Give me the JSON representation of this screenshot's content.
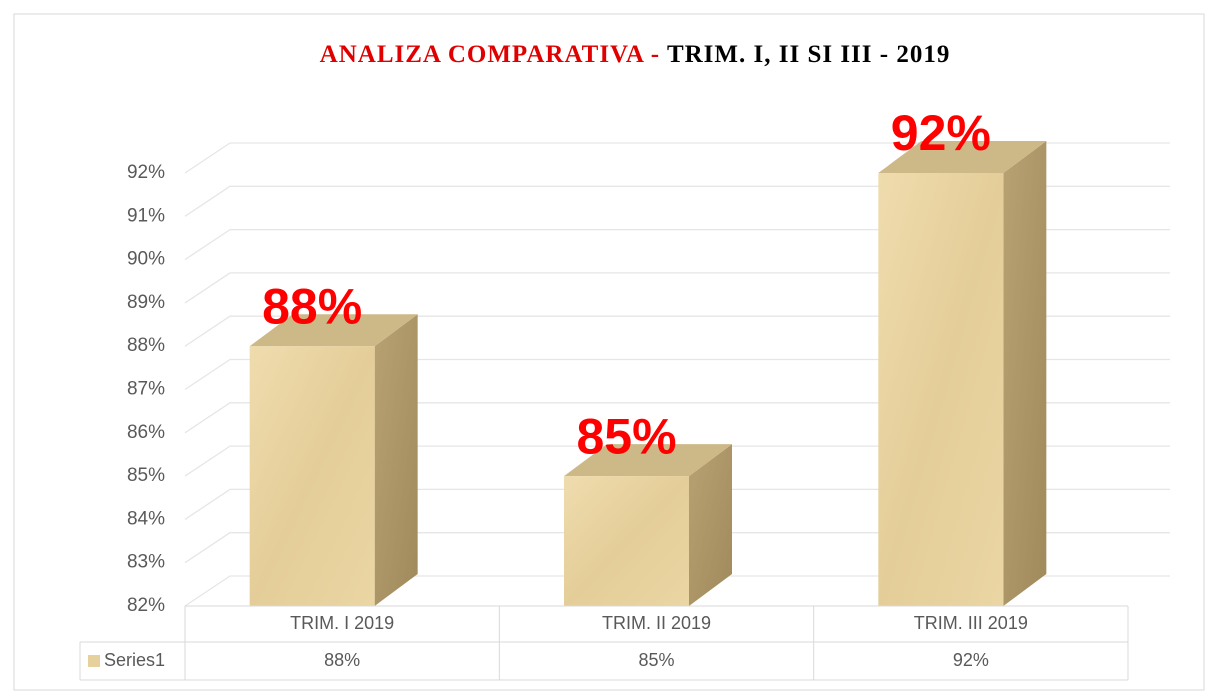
{
  "chart_data": {
    "type": "bar3d",
    "title": [
      "ANALIZA   COMPARATIVA -",
      "TRIM. I, II SI III - 2019"
    ],
    "title_colors": [
      "#e00000",
      "#000000"
    ],
    "categories": [
      "TRIM. I 2019",
      "TRIM. II 2019",
      "TRIM. III 2019"
    ],
    "series": [
      {
        "name": "Series1",
        "color": "#e6d09c",
        "values": [
          88,
          85,
          92
        ],
        "value_labels": [
          "88%",
          "85%",
          "92%"
        ]
      }
    ],
    "label_color": "#ff0000",
    "ylim": [
      82,
      92
    ],
    "yticks": [
      {
        "value": 82,
        "label": "82%"
      },
      {
        "value": 83,
        "label": "83%"
      },
      {
        "value": 84,
        "label": "84%"
      },
      {
        "value": 85,
        "label": "85%"
      },
      {
        "value": 86,
        "label": "86%"
      },
      {
        "value": 87,
        "label": "87%"
      },
      {
        "value": 88,
        "label": "88%"
      },
      {
        "value": 89,
        "label": "89%"
      },
      {
        "value": 90,
        "label": "90%"
      },
      {
        "value": 91,
        "label": "91%"
      },
      {
        "value": 92,
        "label": "92%"
      }
    ],
    "grid": true,
    "data_table": true
  }
}
